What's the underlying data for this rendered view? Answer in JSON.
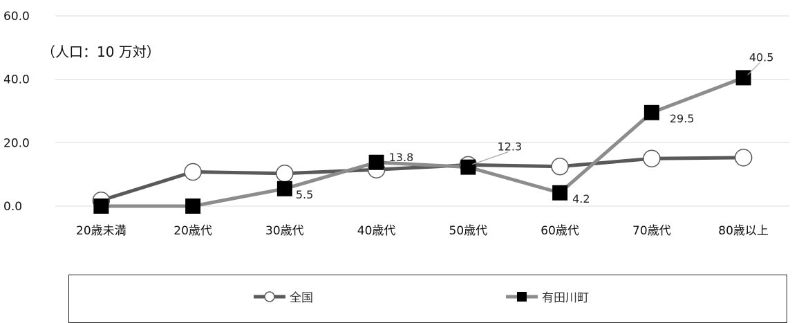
{
  "chart_data": {
    "type": "line",
    "unit_note": "（人口：10 万対）",
    "categories": [
      "20歳未満",
      "20歳代",
      "30歳代",
      "40歳代",
      "50歳代",
      "60歳代",
      "70歳代",
      "80歳以上"
    ],
    "ylim": [
      0,
      60
    ],
    "yticks": [
      "0.0",
      "20.0",
      "40.0",
      "60.0"
    ],
    "grid": true,
    "legend_position": "bottom",
    "series": [
      {
        "name": "全国",
        "marker": "circle",
        "color": "#595959",
        "values": [
          1.8,
          10.8,
          10.3,
          11.5,
          13.0,
          12.5,
          15.0,
          15.3
        ],
        "data_labels": [
          null,
          null,
          null,
          null,
          null,
          null,
          null,
          null
        ]
      },
      {
        "name": "有田川町",
        "marker": "square",
        "color": "#8c8c8c",
        "values": [
          0.0,
          0.0,
          5.5,
          13.8,
          12.3,
          4.2,
          29.5,
          40.5
        ],
        "data_labels": [
          null,
          null,
          "5.5",
          "13.8",
          "12.3",
          "4.2",
          "29.5",
          "40.5"
        ]
      }
    ]
  }
}
